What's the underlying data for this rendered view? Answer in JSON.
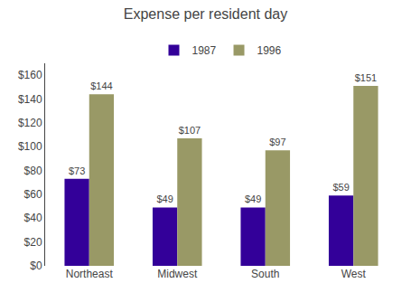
{
  "chart_data": {
    "type": "bar",
    "title": "Expense per resident day",
    "categories": [
      "Northeast",
      "Midwest",
      "South",
      "West"
    ],
    "series": [
      {
        "name": "1987",
        "color": "#330099",
        "values": [
          73,
          49,
          49,
          59
        ],
        "value_labels": [
          "$73",
          "$49",
          "$49",
          "$59"
        ]
      },
      {
        "name": "1996",
        "color": "#999966",
        "values": [
          144,
          107,
          97,
          151
        ],
        "value_labels": [
          "$144",
          "$107",
          "$97",
          "$151"
        ]
      }
    ],
    "ylim": [
      0,
      170
    ],
    "yticks": [
      {
        "value": 0,
        "label": "$0"
      },
      {
        "value": 20,
        "label": "$20"
      },
      {
        "value": 40,
        "label": "$40"
      },
      {
        "value": 60,
        "label": "$60"
      },
      {
        "value": 80,
        "label": "$80"
      },
      {
        "value": 100,
        "label": "$100"
      },
      {
        "value": 120,
        "label": "$120"
      },
      {
        "value": 140,
        "label": "$140"
      },
      {
        "value": 160,
        "label": "$160"
      }
    ],
    "grid": false,
    "legend": "top",
    "data_labels": true
  }
}
